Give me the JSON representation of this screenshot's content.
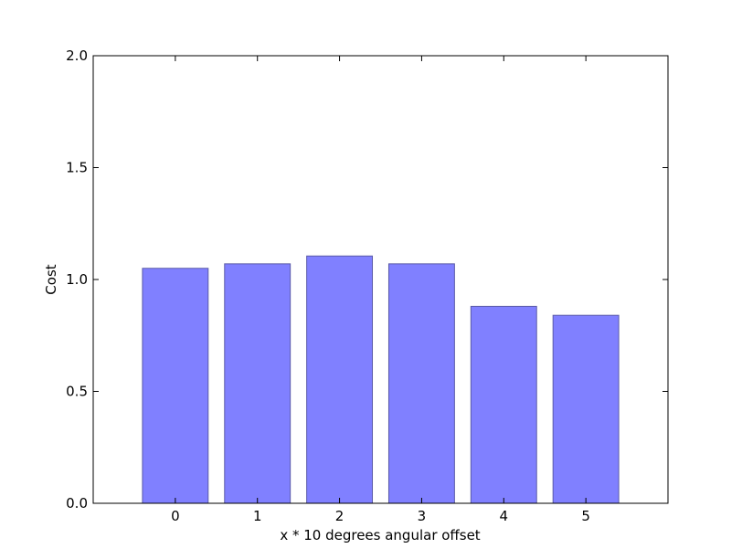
{
  "chart_data": {
    "type": "bar",
    "title": "",
    "xlabel": "x * 10 degrees angular offset",
    "ylabel": "Cost",
    "categories": [
      "0",
      "1",
      "2",
      "3",
      "4",
      "5"
    ],
    "values": [
      1.05,
      1.07,
      1.105,
      1.07,
      0.88,
      0.84
    ],
    "ylim": [
      0,
      2.0
    ],
    "yticks": [
      "0.0",
      "0.5",
      "1.0",
      "1.5",
      "2.0"
    ],
    "ytick_values": [
      0,
      0.5,
      1.0,
      1.5,
      2.0
    ],
    "grid": false,
    "bar_color": "#8080ff",
    "bar_edge_color": "#5a5aa8"
  }
}
